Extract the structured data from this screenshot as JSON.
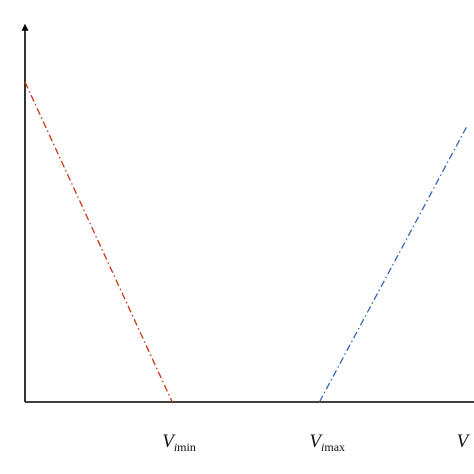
{
  "chart_data": {
    "type": "line",
    "title": "",
    "xlabel": "",
    "ylabel": "",
    "grid": false,
    "legend": "none",
    "xlim": [
      0,
      3.05
    ],
    "ylim": [
      0,
      1.1
    ],
    "axes": {
      "x_arrow": false,
      "y_arrow": true,
      "color": "#000000"
    },
    "ticks": [
      {
        "x": 1.0,
        "main": "V",
        "sub_i": "i",
        "sub_rest": "min"
      },
      {
        "x": 2.0,
        "main": "V",
        "sub_i": "i",
        "sub_rest": "max"
      },
      {
        "x": 3.0,
        "main": "V",
        "sub_i": "",
        "sub_rest": ""
      }
    ],
    "series": [
      {
        "color": "#cc3311",
        "style": "dash-dot",
        "points": [
          [
            0.0,
            1.0
          ],
          [
            1.0,
            0.0
          ]
        ]
      },
      {
        "color": "#3366bb",
        "style": "dash-dot",
        "points": [
          [
            2.0,
            0.0
          ],
          [
            3.0,
            0.86
          ]
        ]
      }
    ]
  }
}
